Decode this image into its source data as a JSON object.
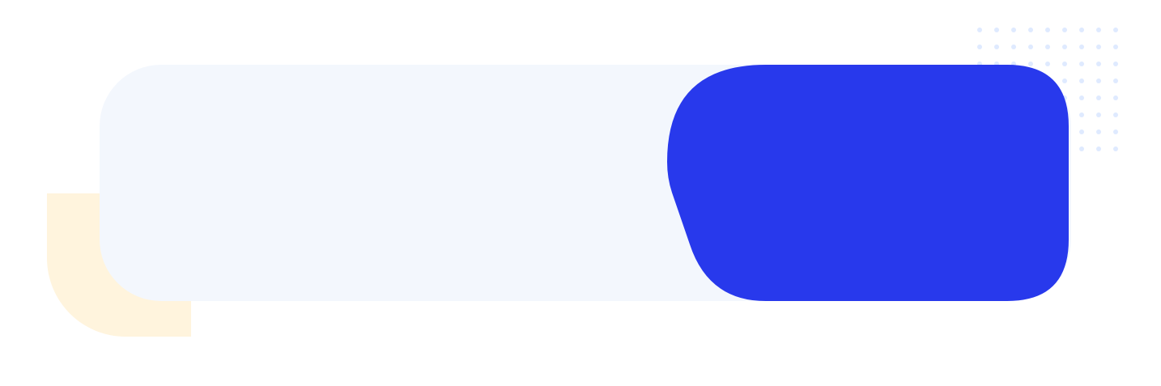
{
  "banner": {
    "text_content": [],
    "colors": {
      "background": "#ffffff",
      "light_panel": "#f3f7fd",
      "accent_panel": "#2839ec",
      "yellow_shape": "#fff4dd",
      "dots": "#dfeaff"
    },
    "decorative_icons": [
      "dot-grid",
      "corner-shape",
      "slanted-panel"
    ]
  }
}
